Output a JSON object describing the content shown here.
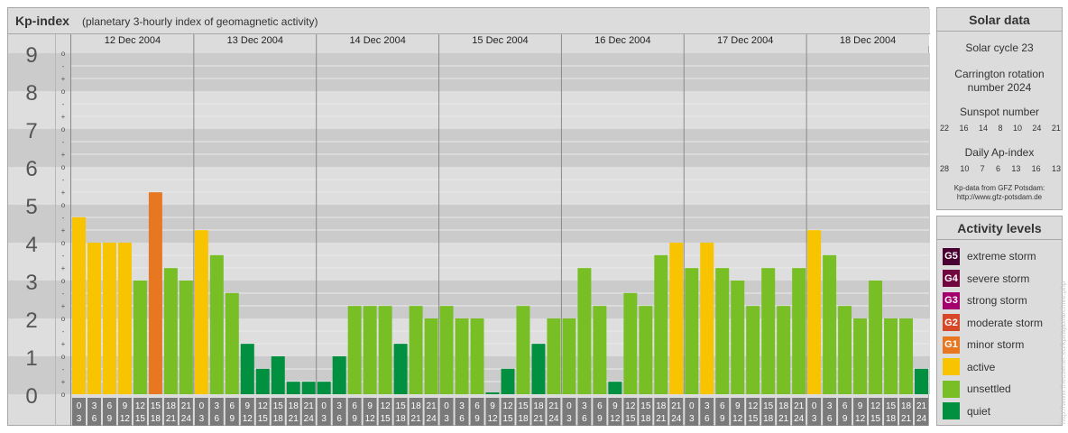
{
  "header": {
    "title": "Kp-index",
    "subtitle": "(planetary 3-hourly index of geomagnetic activity)"
  },
  "chart_data": {
    "type": "bar",
    "days": [
      "12 Dec 2004",
      "13 Dec 2004",
      "14 Dec 2004",
      "15 Dec 2004",
      "16 Dec 2004",
      "17 Dec 2004",
      "18 Dec 2004"
    ],
    "interval_top": [
      "0",
      "3",
      "6",
      "9",
      "12",
      "15",
      "18",
      "21"
    ],
    "interval_bottom": [
      "3",
      "6",
      "9",
      "12",
      "15",
      "18",
      "21",
      "24"
    ],
    "values": [
      4.67,
      4.0,
      4.0,
      4.0,
      3.0,
      5.33,
      3.33,
      3.0,
      4.33,
      3.67,
      2.67,
      1.33,
      0.67,
      1.0,
      0.33,
      0.33,
      0.33,
      1.0,
      2.33,
      2.33,
      2.33,
      1.33,
      2.33,
      2.0,
      2.33,
      2.0,
      2.0,
      0.0,
      0.67,
      2.33,
      1.33,
      2.0,
      2.0,
      3.33,
      2.33,
      0.33,
      2.67,
      2.33,
      3.67,
      4.0,
      3.33,
      4.0,
      3.33,
      3.0,
      2.33,
      3.33,
      2.33,
      3.33,
      4.33,
      3.67,
      2.33,
      2.0,
      3.0,
      2.0,
      2.0,
      0.67
    ],
    "y_labels": [
      "0",
      "1",
      "2",
      "3",
      "4",
      "5",
      "6",
      "7",
      "8",
      "9"
    ],
    "sub_labels": [
      "o",
      "+",
      "-"
    ],
    "ylim": [
      0,
      9
    ],
    "colors": {
      "quiet": "#009040",
      "unsettled": "#78bf26",
      "active": "#f8c400",
      "minor": "#e87722",
      "moderate": "#d74829",
      "strong": "#a3006e",
      "severe": "#72073f",
      "extreme": "#4a0030"
    }
  },
  "solar": {
    "title": "Solar data",
    "cycle": "Solar cycle 23",
    "carrington_line1": "Carrington rotation",
    "carrington_line2": "number 2024",
    "sunspot_label": "Sunspot number",
    "sunspot_values": [
      "22",
      "16",
      "14",
      "8",
      "10",
      "24",
      "21"
    ],
    "ap_label": "Daily Ap-index",
    "ap_values": [
      "28",
      "10",
      "7",
      "6",
      "13",
      "16",
      "13"
    ],
    "source_line1": "Kp-data from GFZ Potsdam:",
    "source_line2": "http://www.gfz-potsdam.de"
  },
  "activity": {
    "title": "Activity levels",
    "levels": [
      {
        "code": "G5",
        "label": "extreme storm",
        "color": "#4a0030"
      },
      {
        "code": "G4",
        "label": "severe storm",
        "color": "#72073f"
      },
      {
        "code": "G3",
        "label": "strong storm",
        "color": "#a3006e"
      },
      {
        "code": "G2",
        "label": "moderate storm",
        "color": "#d74829"
      },
      {
        "code": "G1",
        "label": "minor storm",
        "color": "#e87722"
      },
      {
        "code": "",
        "label": "active",
        "color": "#f8c400"
      },
      {
        "code": "",
        "label": "unsettled",
        "color": "#78bf26"
      },
      {
        "code": "",
        "label": "quiet",
        "color": "#009040"
      }
    ]
  },
  "watermark": "http://www.theusenet.eu/kpi/ajax/archive.php"
}
